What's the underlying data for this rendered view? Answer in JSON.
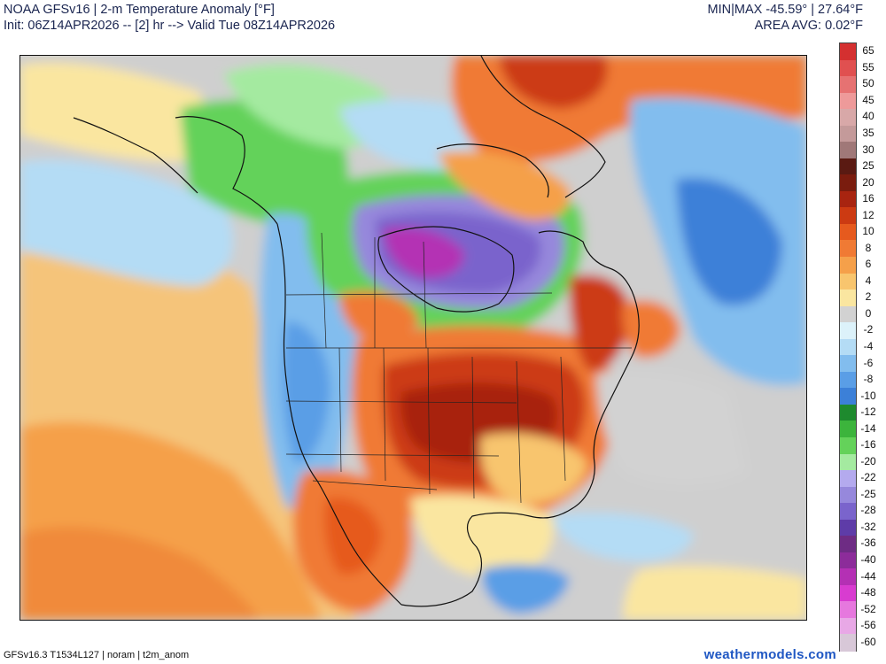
{
  "header": {
    "title": "NOAA GFSv16 | 2-m Temperature Anomaly [°F]",
    "init": "Init: 06Z14APR2026 -- [2] hr --> Valid Tue 08Z14APR2026",
    "minmax": "MIN|MAX -45.59° | 27.64°F",
    "area_avg": "AREA AVG: 0.02°F"
  },
  "footer": {
    "model_info": "GFSv16.3 T1534L127 | noram | t2m_anom",
    "site": "weathermodels.com"
  },
  "map": {
    "region": "North America",
    "variable": "2-m temperature anomaly",
    "units": "°F"
  },
  "colorbar": {
    "labels": [
      "65",
      "55",
      "50",
      "45",
      "40",
      "35",
      "30",
      "25",
      "20",
      "16",
      "12",
      "10",
      "8",
      "6",
      "4",
      "2",
      "0",
      "-2",
      "-4",
      "-6",
      "-8",
      "-10",
      "-12",
      "-14",
      "-16",
      "-20",
      "-22",
      "-25",
      "-28",
      "-32",
      "-36",
      "-40",
      "-44",
      "-48",
      "-52",
      "-56",
      "-60"
    ],
    "colors": [
      "#d43030",
      "#e05050",
      "#e67272",
      "#ee9a9a",
      "#d8a8a8",
      "#c49a9a",
      "#a07878",
      "#5a1a12",
      "#7a1c0e",
      "#a82410",
      "#cc3a12",
      "#e65a1e",
      "#f07a34",
      "#f5a04a",
      "#f8c56e",
      "#fae6a0",
      "#d2d2d2",
      "#dcf2fa",
      "#b4dcf5",
      "#82bdee",
      "#5a9ee6",
      "#3c80d8",
      "#1e8a2e",
      "#3cb43c",
      "#64d25a",
      "#a4eaa0",
      "#b4aaee",
      "#9688dc",
      "#7a64cc",
      "#5e3ca8",
      "#6e2c84",
      "#8c2c9a",
      "#b430b4",
      "#d83cd0",
      "#e678de",
      "#e8a8e6",
      "#d8c8d8"
    ]
  }
}
